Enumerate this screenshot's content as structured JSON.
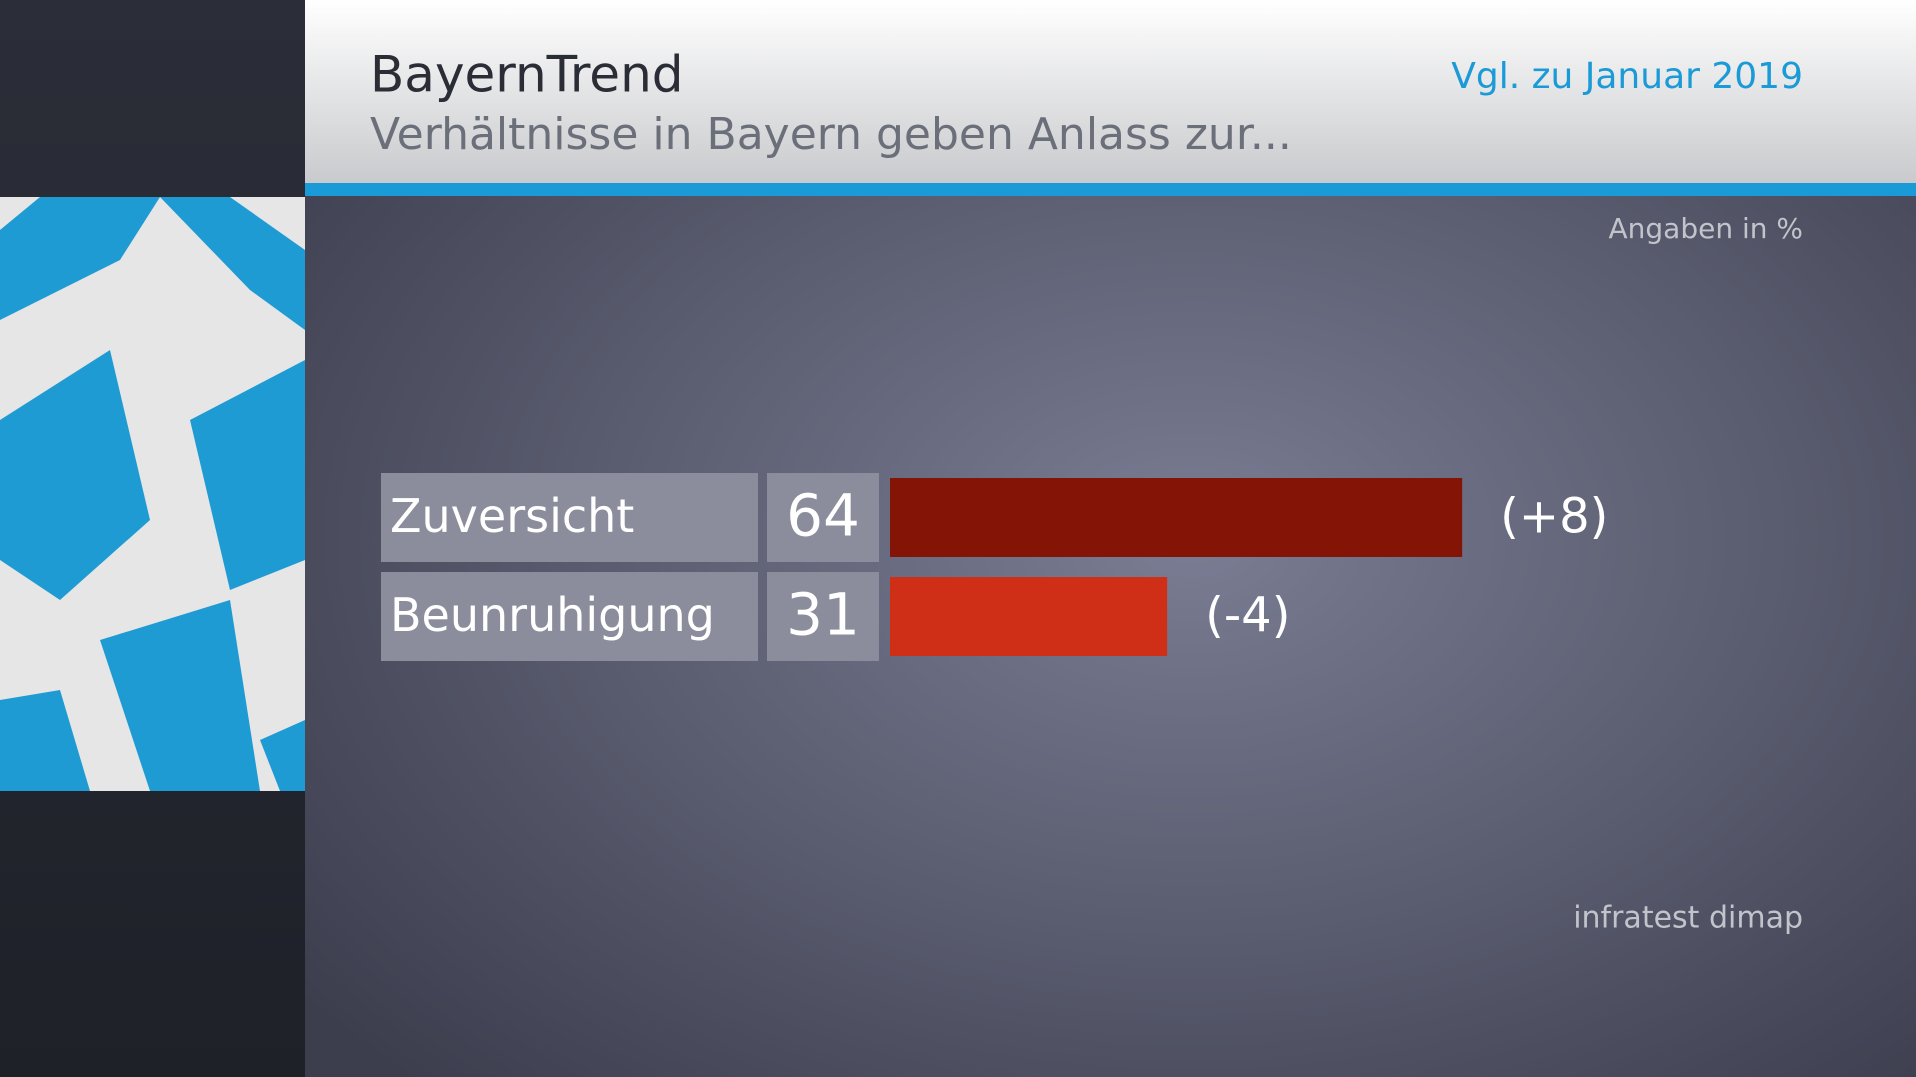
{
  "chart_data": {
    "type": "bar",
    "title": "BayernTrend",
    "subtitle": "Verhältnisse in Bayern geben Anlass zur...",
    "comparison": "Vgl. zu Januar 2019",
    "unit_note": "Angaben in %",
    "source": "infratest dimap",
    "categories": [
      "Zuversicht",
      "Beunruhigung"
    ],
    "values": [
      64,
      31
    ],
    "colors": [
      "#841506",
      "#cf2e17"
    ],
    "change_labels": [
      "(+8)",
      "(-4)"
    ]
  }
}
